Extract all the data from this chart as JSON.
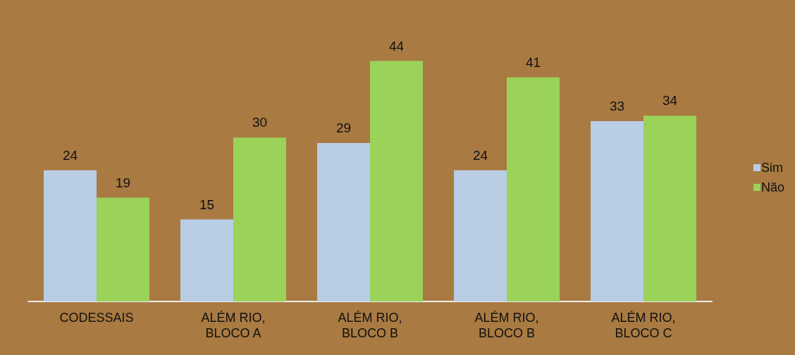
{
  "chart_data": {
    "type": "bar",
    "categories": [
      "CODESSAIS",
      "ALÉM RIO,\nBLOCO A",
      "ALÉM RIO,\nBLOCO B",
      "ALÉM RIO,\nBLOCO B",
      "ALÉM RIO,\nBLOCO C"
    ],
    "series": [
      {
        "name": "Sim",
        "color": "#b9cde5",
        "values": [
          24,
          15,
          29,
          24,
          33
        ]
      },
      {
        "name": "Não",
        "color": "#9bd25a",
        "values": [
          19,
          30,
          44,
          41,
          34
        ]
      }
    ],
    "data_labels": true,
    "legend": "right",
    "grid": false
  }
}
